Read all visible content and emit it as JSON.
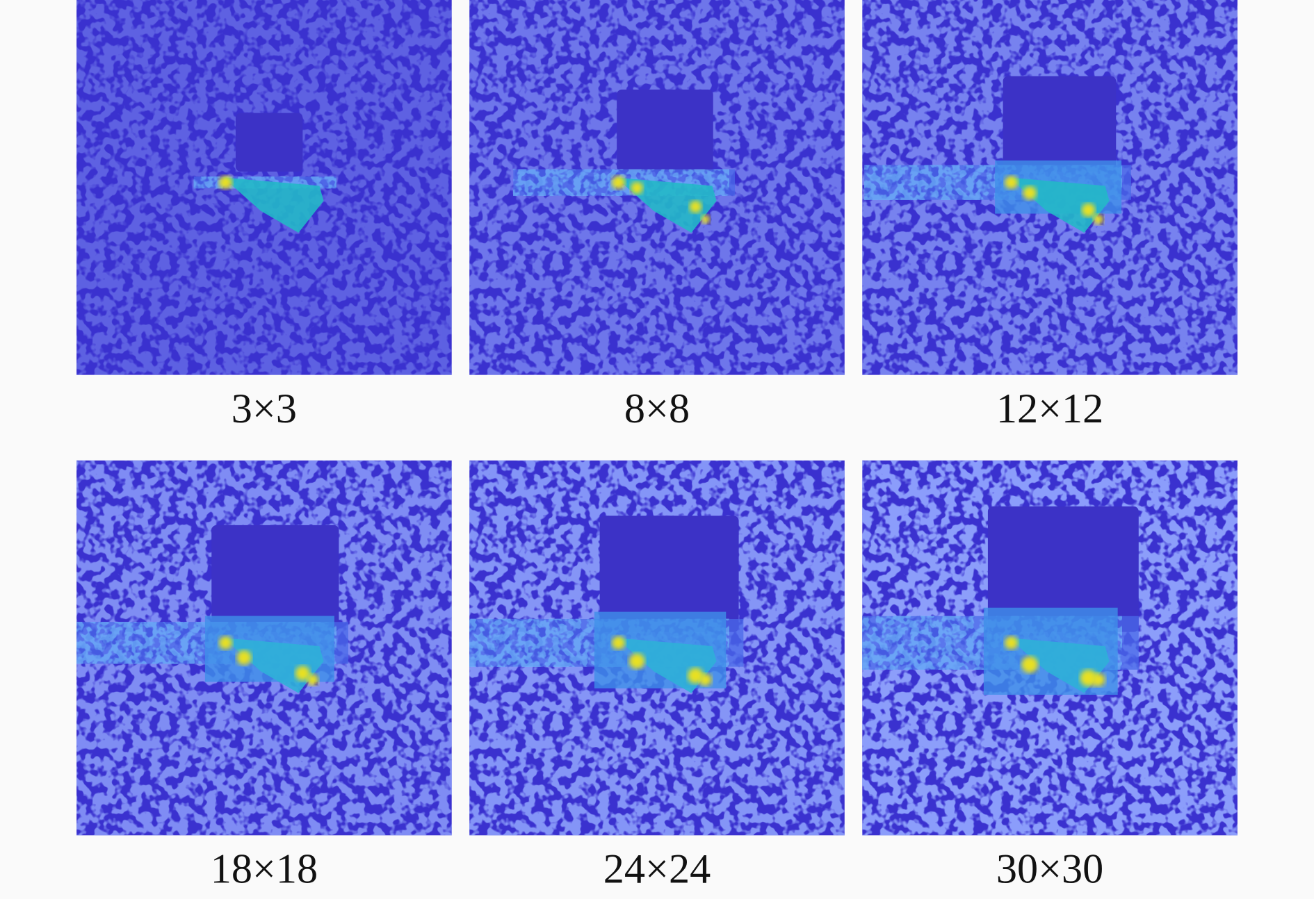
{
  "figure": {
    "panels": [
      {
        "label": "3×3"
      },
      {
        "label": "8×8"
      },
      {
        "label": "12×12"
      },
      {
        "label": "18×18"
      },
      {
        "label": "24×24"
      },
      {
        "label": "30×30"
      }
    ]
  }
}
